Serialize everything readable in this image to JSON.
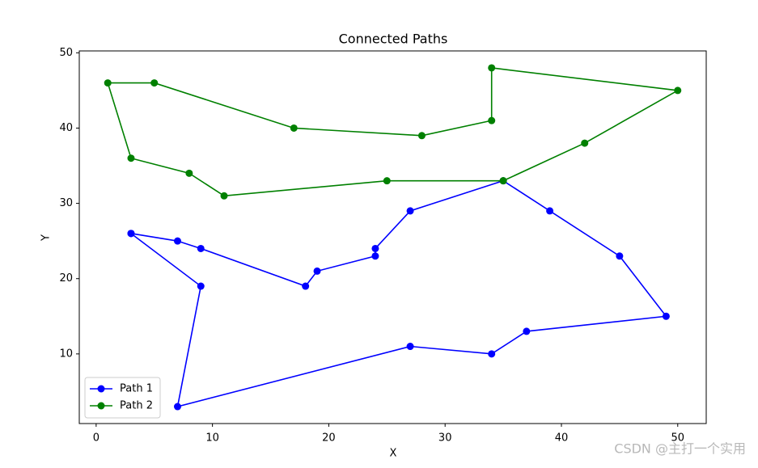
{
  "chart_data": {
    "type": "line",
    "title": "Connected Paths",
    "x_label": "X",
    "y_label": "Y",
    "series": [
      {
        "name": "Path 1",
        "color": "#0000ff",
        "x": [
          3,
          7,
          9,
          18,
          19,
          24,
          24,
          27,
          35,
          39,
          45,
          49,
          37,
          34,
          27,
          7,
          9,
          3
        ],
        "values": [
          26,
          25,
          24,
          19,
          21,
          23,
          24,
          29,
          33,
          29,
          23,
          15,
          13,
          10,
          11,
          3,
          19,
          26
        ]
      },
      {
        "name": "Path 2",
        "color": "#008000",
        "x": [
          35,
          25,
          11,
          8,
          3,
          1,
          5,
          17,
          28,
          34,
          34,
          50,
          42,
          35
        ],
        "values": [
          33,
          33,
          31,
          34,
          36,
          46,
          46,
          40,
          39,
          41,
          48,
          45,
          38,
          33
        ]
      }
    ],
    "xlim": [
      -1.45,
      52.45
    ],
    "ylim": [
      0.75,
      50.25
    ],
    "xticks": [
      0,
      10,
      20,
      30,
      40,
      50
    ],
    "yticks": [
      10,
      20,
      30,
      40,
      50
    ],
    "legend": "lower left",
    "grid": false
  },
  "watermark": "CSDN @主打一个实用"
}
